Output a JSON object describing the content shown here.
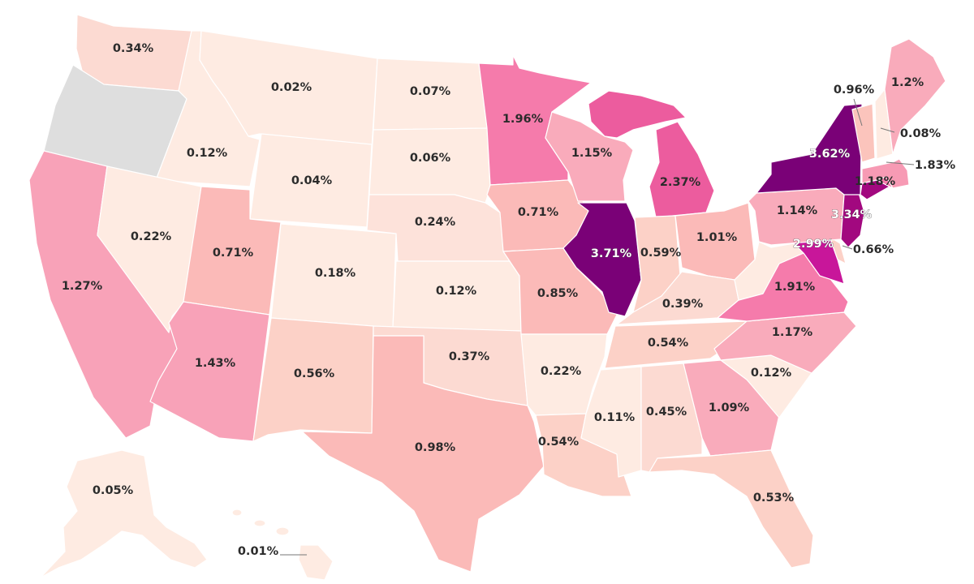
{
  "legend_colors": {
    "no_data": "#dedede",
    "very_low": "#feebe2",
    "low": "#fcd1c7",
    "mid_low": "#fbbab8",
    "mid": "#f8a2b8",
    "mid_high": "#f57bab",
    "high": "#ec5c9e",
    "very_high": "#c8169a",
    "max": "#7a0177"
  },
  "states": {
    "WA": {
      "label": "0.34%",
      "color": "#fcdad2"
    },
    "OR": {
      "label": "",
      "color": "#dedede"
    },
    "CA": {
      "label": "1.27%",
      "color": "#f8a2b8"
    },
    "ID": {
      "label": "0.12%",
      "color": "#feebe2"
    },
    "NV": {
      "label": "0.22%",
      "color": "#feebe2"
    },
    "MT": {
      "label": "0.02%",
      "color": "#feebe2"
    },
    "WY": {
      "label": "0.04%",
      "color": "#feebe2"
    },
    "UT": {
      "label": "0.71%",
      "color": "#fbbab8"
    },
    "AZ": {
      "label": "1.43%",
      "color": "#f8a2b8"
    },
    "CO": {
      "label": "0.18%",
      "color": "#feebe2"
    },
    "NM": {
      "label": "0.56%",
      "color": "#fcd1c7"
    },
    "ND": {
      "label": "0.07%",
      "color": "#feebe2"
    },
    "SD": {
      "label": "0.06%",
      "color": "#feebe2"
    },
    "NE": {
      "label": "0.24%",
      "color": "#fde2da"
    },
    "KS": {
      "label": "0.12%",
      "color": "#feebe2"
    },
    "OK": {
      "label": "0.37%",
      "color": "#fcdad2"
    },
    "TX": {
      "label": "0.98%",
      "color": "#fbbab8"
    },
    "MN": {
      "label": "1.96%",
      "color": "#f57bab"
    },
    "IA": {
      "label": "0.71%",
      "color": "#fbbab8"
    },
    "MO": {
      "label": "0.85%",
      "color": "#fbbab8"
    },
    "AR": {
      "label": "0.22%",
      "color": "#feebe2"
    },
    "LA": {
      "label": "0.54%",
      "color": "#fcd1c7"
    },
    "WI": {
      "label": "1.15%",
      "color": "#f9abbb"
    },
    "IL": {
      "label": "3.71%",
      "color": "#7a0177"
    },
    "MI": {
      "label": "2.37%",
      "color": "#ec5c9e"
    },
    "IN": {
      "label": "0.59%",
      "color": "#fcd1c7"
    },
    "OH": {
      "label": "1.01%",
      "color": "#fbbab8"
    },
    "KY": {
      "label": "0.39%",
      "color": "#fcdad2"
    },
    "TN": {
      "label": "0.54%",
      "color": "#fcd1c7"
    },
    "MS": {
      "label": "0.11%",
      "color": "#feebe2"
    },
    "AL": {
      "label": "0.45%",
      "color": "#fcdad2"
    },
    "GA": {
      "label": "1.09%",
      "color": "#f9abbb"
    },
    "FL": {
      "label": "0.53%",
      "color": "#fcd1c7"
    },
    "SC": {
      "label": "0.12%",
      "color": "#feebe2"
    },
    "NC": {
      "label": "1.17%",
      "color": "#f9abbb"
    },
    "VA": {
      "label": "1.91%",
      "color": "#f57bab"
    },
    "WV": {
      "label": "",
      "color": "#feebe2"
    },
    "MD": {
      "label": "2.99%",
      "color": "#c8169a"
    },
    "DE": {
      "label": "0.66%",
      "color": "#fcd1c7"
    },
    "PA": {
      "label": "1.14%",
      "color": "#f9abbb"
    },
    "NJ": {
      "label": "3.34%",
      "color": "#a2087f"
    },
    "NY": {
      "label": "3.62%",
      "color": "#7a0177"
    },
    "CT": {
      "label": "",
      "color": "#a2087f"
    },
    "RI": {
      "label": "",
      "color": "#f57bab"
    },
    "MA": {
      "label": "1.83%",
      "color": "#f79ab4"
    },
    "MA_inner": {
      "label": "1.18%",
      "color": "#f9abbb"
    },
    "VT": {
      "label": "0.96%",
      "color": "#fbc4bc"
    },
    "NH": {
      "label": "0.08%",
      "color": "#feebe2"
    },
    "ME": {
      "label": "1.2%",
      "color": "#f9abbb"
    },
    "AK": {
      "label": "0.05%",
      "color": "#feebe2"
    },
    "HI": {
      "label": "0.01%",
      "color": "#feebe2"
    }
  }
}
